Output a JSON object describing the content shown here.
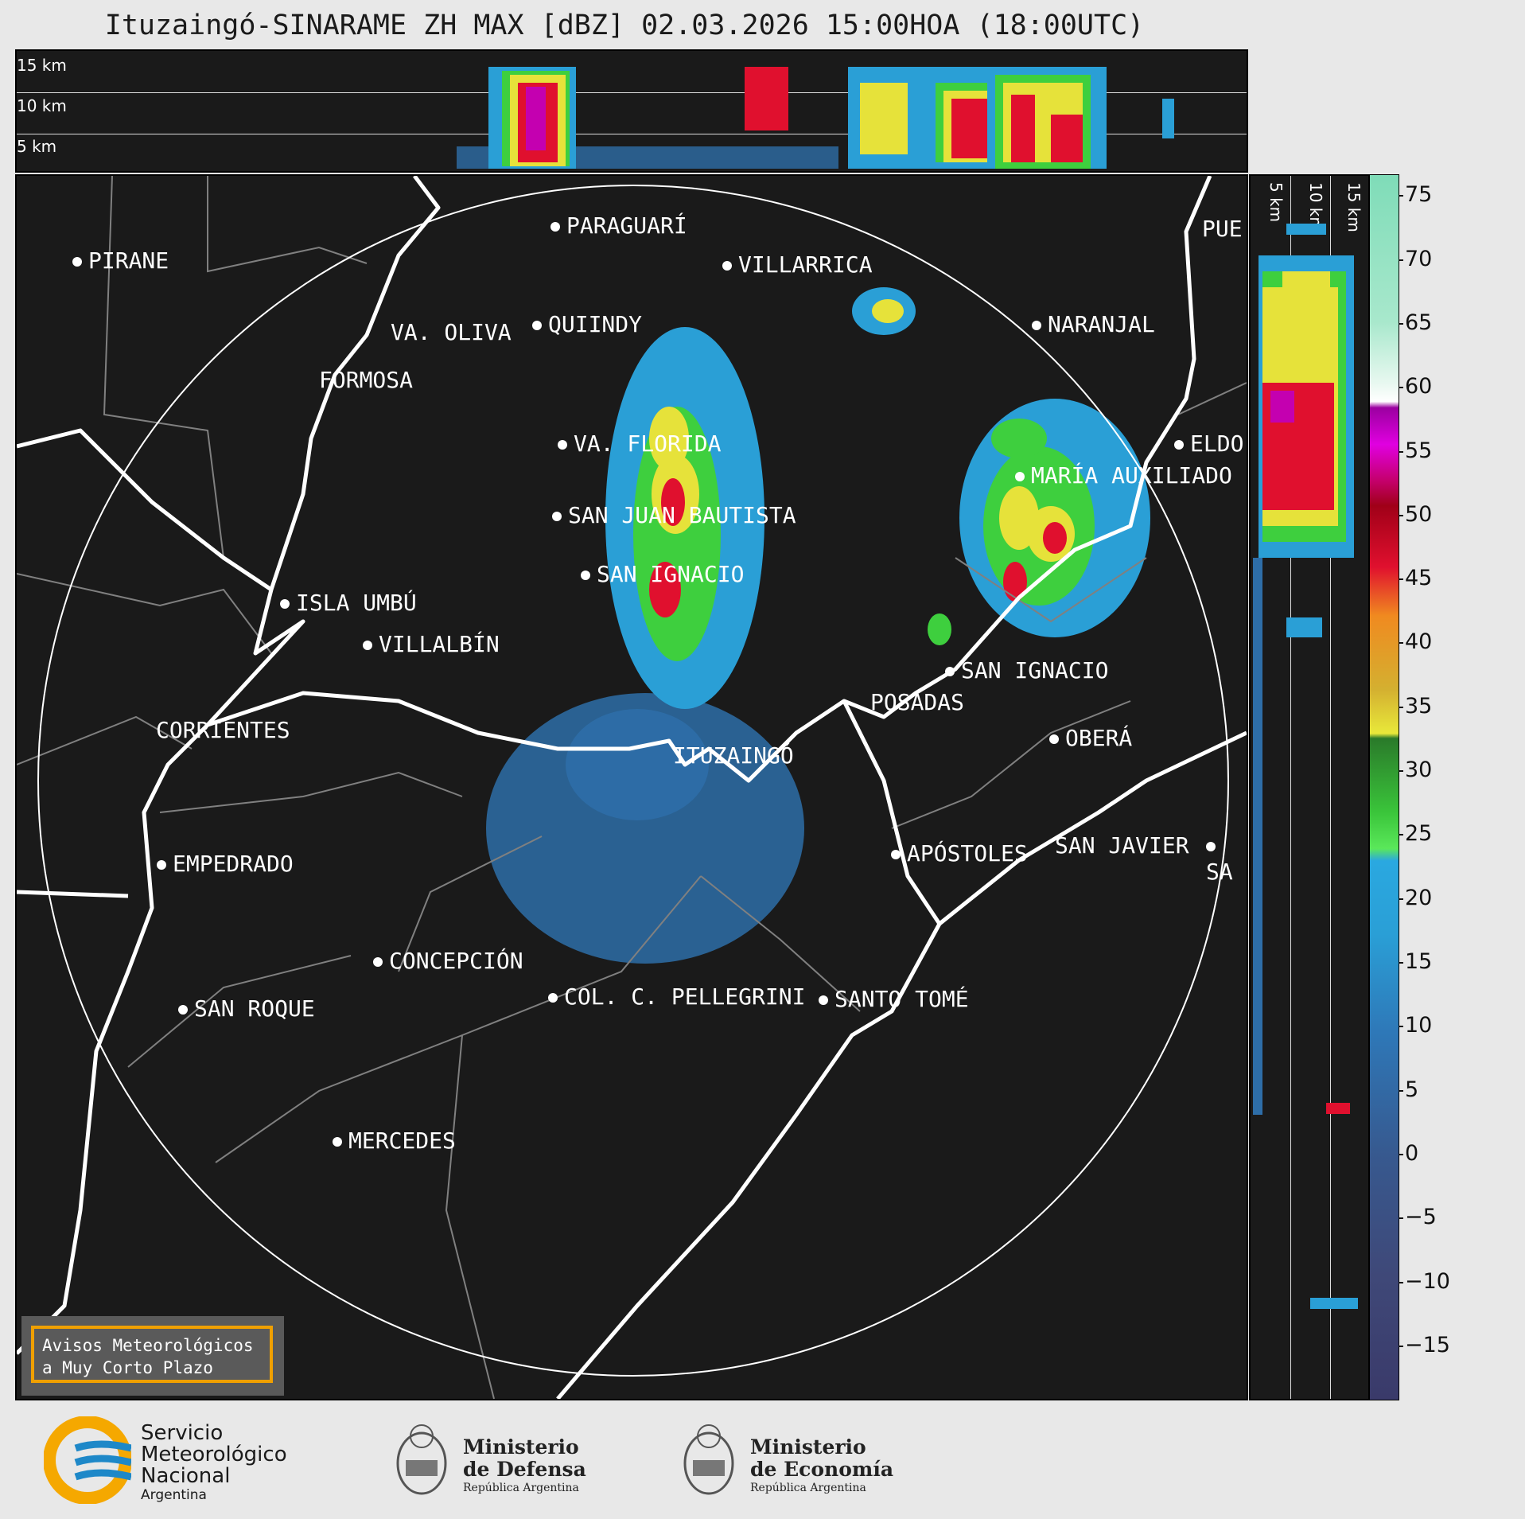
{
  "title": "Ituzaingó-SINARAME ZH MAX [dBZ] 02.03.2026 15:00HOA (18:00UTC)",
  "altitude_labels_top": [
    "15 km",
    "10 km",
    "5 km"
  ],
  "altitude_labels_side": [
    "5 km",
    "10 km",
    "15 km"
  ],
  "colorbar": {
    "ticks": [
      "75",
      "70",
      "65",
      "60",
      "55",
      "50",
      "45",
      "40",
      "35",
      "30",
      "25",
      "20",
      "15",
      "10",
      "5",
      "0",
      "−5",
      "−10",
      "−15"
    ],
    "range": [
      -20,
      77
    ]
  },
  "cities": [
    {
      "name": "PIRANE"
    },
    {
      "name": "PARAGUARÍ"
    },
    {
      "name": "VILLARRICA"
    },
    {
      "name": "VA. OLIVA"
    },
    {
      "name": "QUIINDY"
    },
    {
      "name": "NARANJAL"
    },
    {
      "name": "FORMOSA"
    },
    {
      "name": "PUE"
    },
    {
      "name": "VA. FLORIDA"
    },
    {
      "name": "ELDO"
    },
    {
      "name": "MARÍA AUXILIADO"
    },
    {
      "name": "SAN JUAN BAUTISTA"
    },
    {
      "name": "SAN IGNACIO"
    },
    {
      "name": "ISLA UMBÚ"
    },
    {
      "name": "VILLALBÍN"
    },
    {
      "name": "SAN IGNACIO"
    },
    {
      "name": "POSADAS"
    },
    {
      "name": "CORRIENTES"
    },
    {
      "name": "ITUZAINGÓ"
    },
    {
      "name": "OBERÁ"
    },
    {
      "name": "EMPEDRADO"
    },
    {
      "name": "APÓSTOLES"
    },
    {
      "name": "SAN JAVIER"
    },
    {
      "name": "SA"
    },
    {
      "name": "CONCEPCIÓN"
    },
    {
      "name": "COL. C. PELLEGRINI"
    },
    {
      "name": "SANTO TOMÉ"
    },
    {
      "name": "SAN ROQUE"
    },
    {
      "name": "MERCEDES"
    }
  ],
  "notice": {
    "line1": "Avisos Meteorológicos",
    "line2": "a Muy Corto Plazo"
  },
  "logos": {
    "smn": {
      "line1": "Servicio",
      "line2": "Meteorológico",
      "line3": "Nacional",
      "line4": "Argentina"
    },
    "defensa": {
      "line1": "Ministerio",
      "line2": "de Defensa",
      "line3": "República Argentina"
    },
    "economia": {
      "line1": "Ministerio",
      "line2": "de Economía",
      "line3": "República Argentina"
    }
  },
  "colors": {
    "background": "#1a1a1a",
    "border_lines": "#ffffff",
    "province_lines": "#808080",
    "notice_border": "#f0a000",
    "smn_yellow": "#f5a800",
    "smn_blue": "#1e88c8"
  }
}
